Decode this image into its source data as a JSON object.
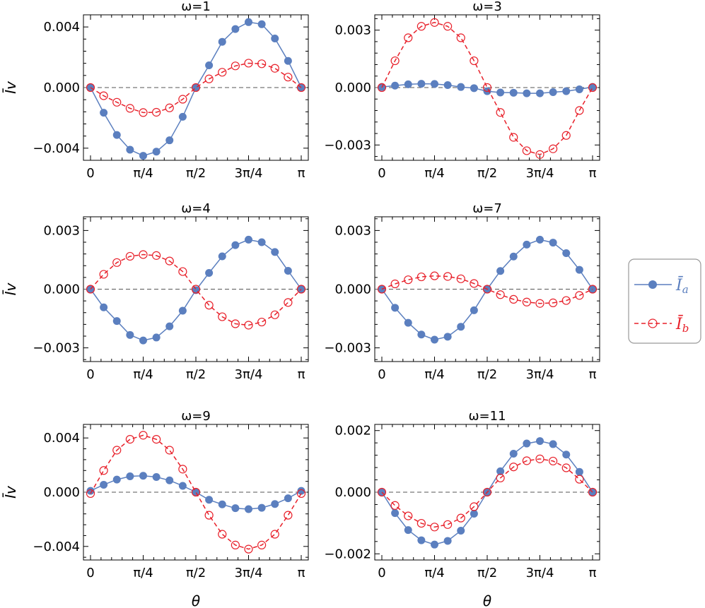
{
  "colors": {
    "series_a": "#5b7fbf",
    "series_b": "#e8202a",
    "zero_line": "#555555"
  },
  "legend": {
    "placement": "right",
    "items": [
      {
        "label": "Ī",
        "sub": "a"
      },
      {
        "label": "Ī",
        "sub": "b"
      }
    ]
  },
  "chart_data": [
    {
      "type": "line",
      "title": "ω=1",
      "xlabel": "",
      "ylabel": "Īv",
      "ylim": [
        -0.0048,
        0.0048
      ],
      "yticks": [
        -0.004,
        0.0,
        0.004
      ],
      "yticklabels": [
        "−0.004",
        "0.000",
        "0.004"
      ],
      "xticklabels": [
        "0",
        "π/4",
        "π/2",
        "3π/4",
        "π"
      ],
      "series": [
        {
          "key": "a",
          "values": [
            0,
            -0.00166,
            -0.00313,
            -0.0041,
            -0.0045,
            -0.00423,
            -0.00348,
            -0.00193,
            0,
            0.00147,
            0.00302,
            0.00386,
            0.00432,
            0.00418,
            0.00324,
            0.00176,
            0
          ]
        },
        {
          "key": "b",
          "values": [
            0,
            -0.00054,
            -0.00097,
            -0.00137,
            -0.00165,
            -0.00163,
            -0.00134,
            -0.00077,
            0,
            0.00057,
            0.00101,
            0.00143,
            0.00161,
            0.00157,
            0.00127,
            0.00069,
            0
          ]
        }
      ]
    },
    {
      "type": "line",
      "title": "ω=3",
      "xlabel": "",
      "ylabel": "",
      "ylim": [
        -0.0038,
        0.0038
      ],
      "yticks": [
        -0.003,
        0.0,
        0.003
      ],
      "yticklabels": [
        "−0.003",
        "0.000",
        "0.003"
      ],
      "xticklabels": [
        "0",
        "π/4",
        "π/2",
        "3π/4",
        "π"
      ],
      "series": [
        {
          "key": "a",
          "values": [
            3e-05,
            0.0001,
            0.00017,
            0.0002,
            0.00019,
            0.00013,
            3e-05,
            -3e-05,
            -0.00019,
            -0.00026,
            -0.00027,
            -0.0003,
            -0.0003,
            -0.00024,
            -0.00019,
            -9e-05,
            3e-05
          ]
        },
        {
          "key": "b",
          "values": [
            0,
            0.0014,
            0.0026,
            0.0032,
            0.0034,
            0.0032,
            0.0026,
            0.0014,
            0,
            -0.0013,
            -0.0026,
            -0.0033,
            -0.0035,
            -0.0032,
            -0.0025,
            -0.0012,
            0
          ]
        }
      ]
    },
    {
      "type": "line",
      "title": "ω=4",
      "xlabel": "",
      "ylabel": "Īv",
      "ylim": [
        -0.0037,
        0.0037
      ],
      "yticks": [
        -0.003,
        0.0,
        0.003
      ],
      "yticklabels": [
        "−0.003",
        "0.000",
        "0.003"
      ],
      "xticklabels": [
        "0",
        "π/4",
        "π/2",
        "3π/4",
        "π"
      ],
      "series": [
        {
          "key": "a",
          "values": [
            0,
            -0.00093,
            -0.00163,
            -0.00234,
            -0.00262,
            -0.00247,
            -0.0019,
            -0.0011,
            -5e-05,
            0.00083,
            0.00168,
            0.00225,
            0.00253,
            0.0024,
            0.0019,
            0.00094,
            0
          ]
        },
        {
          "key": "b",
          "values": [
            0,
            0.00076,
            0.00136,
            0.00168,
            0.00177,
            0.00172,
            0.00144,
            0.0009,
            0,
            -0.00082,
            -0.00141,
            -0.00177,
            -0.00184,
            -0.00168,
            -0.00131,
            -0.00068,
            0
          ]
        }
      ]
    },
    {
      "type": "line",
      "title": "ω=7",
      "xlabel": "",
      "ylabel": "",
      "ylim": [
        -0.0037,
        0.0037
      ],
      "yticks": [
        -0.003,
        0.0,
        0.003
      ],
      "yticklabels": [
        "−0.003",
        "0.000",
        "0.003"
      ],
      "xticklabels": [
        "0",
        "π/4",
        "π/2",
        "3π/4",
        "π"
      ],
      "series": [
        {
          "key": "a",
          "values": [
            0,
            -0.00095,
            -0.00172,
            -0.00232,
            -0.00258,
            -0.00243,
            -0.00192,
            -0.00108,
            0,
            0.00093,
            0.00167,
            0.00228,
            0.00253,
            0.00238,
            0.00184,
            0.00099,
            0
          ]
        },
        {
          "key": "b",
          "values": [
            0,
            0.00027,
            0.00048,
            0.00063,
            0.00068,
            0.00065,
            0.00053,
            0.00029,
            0,
            -0.00028,
            -0.00052,
            -0.00066,
            -0.00073,
            -0.0007,
            -0.00058,
            -0.00032,
            0
          ]
        }
      ]
    },
    {
      "type": "line",
      "title": "ω=9",
      "xlabel": "θ",
      "ylabel": "Īv",
      "ylim": [
        -0.005,
        0.005
      ],
      "yticks": [
        -0.004,
        0.0,
        0.004
      ],
      "yticklabels": [
        "−0.004",
        "0.000",
        "0.004"
      ],
      "xticklabels": [
        "0",
        "π/4",
        "π/2",
        "3π/4",
        "π"
      ],
      "series": [
        {
          "key": "a",
          "values": [
            0.0001,
            0.00055,
            0.00093,
            0.00117,
            0.00121,
            0.00112,
            0.00087,
            0.00047,
            0,
            -0.00056,
            -0.0009,
            -0.00118,
            -0.00125,
            -0.00115,
            -0.00087,
            -0.00045,
            0.0001
          ]
        },
        {
          "key": "b",
          "values": [
            -0.0001,
            0.0016,
            0.0031,
            0.0039,
            0.0042,
            0.0039,
            0.0031,
            0.0017,
            0,
            -0.0017,
            -0.0031,
            -0.0039,
            -0.0042,
            -0.0039,
            -0.0031,
            -0.0017,
            -0.0001
          ]
        }
      ]
    },
    {
      "type": "line",
      "title": "ω=11",
      "xlabel": "θ",
      "ylabel": "",
      "ylim": [
        -0.0022,
        0.0022
      ],
      "yticks": [
        -0.002,
        0.0,
        0.002
      ],
      "yticklabels": [
        "−0.002",
        "0.000",
        "0.002"
      ],
      "xticklabels": [
        "0",
        "π/4",
        "π/2",
        "3π/4",
        "π"
      ],
      "series": [
        {
          "key": "a",
          "values": [
            0,
            -0.00068,
            -0.00123,
            -0.00156,
            -0.0017,
            -0.00158,
            -0.00125,
            -0.0007,
            0,
            0.00068,
            0.00125,
            0.00158,
            0.00166,
            0.00156,
            0.00122,
            0.00066,
            0
          ]
        },
        {
          "key": "b",
          "values": [
            0,
            -0.00043,
            -0.00077,
            -0.00101,
            -0.00113,
            -0.00105,
            -0.00084,
            -0.00047,
            0,
            0.00046,
            0.00082,
            0.00102,
            0.00108,
            0.00101,
            0.00079,
            0.00042,
            0
          ]
        }
      ]
    }
  ]
}
